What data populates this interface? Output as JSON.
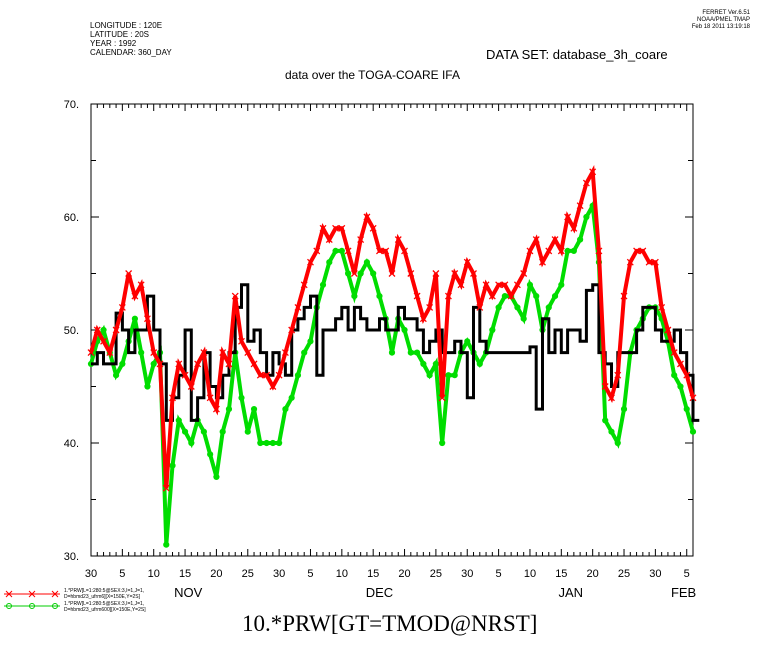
{
  "header": {
    "meta_lines": [
      "LONGITUDE : 120E",
      "LATITUDE : 20S",
      "YEAR : 1992",
      "CALENDAR: 360_DAY"
    ],
    "stamp_lines": [
      "FERRET  Ver.6.51",
      "NOAA/PMEL TMAP",
      "Feb 18 2011 13:19:18"
    ],
    "dataset": "DATA SET: database_3h_coare",
    "subtitle": "data over the TOGA-COARE IFA",
    "expression": "10.*PRW[GT=TMOD@NRST]"
  },
  "legend": {
    "items": [
      {
        "line1": "1.*PRW[L=1:280:5@SEX:3,I=1,J=1,",
        "line2": "D=hbmd23_ufrm6][X=150E,Y=2S]",
        "color": "#ff0000",
        "marker": "x"
      },
      {
        "line1": "1.*PRW[L=1:280:5@SEX:3,I=1,J=1,",
        "line2": "D=hbmd23_ufrm600][X=150E,Y=2S]",
        "color": "#00dd00",
        "marker": "o"
      }
    ]
  },
  "chart_data": {
    "type": "line",
    "ylim": [
      30,
      70
    ],
    "yticks": [
      30,
      40,
      50,
      60,
      70
    ],
    "ytick_labels": [
      "30.",
      "40.",
      "50.",
      "60.",
      "70."
    ],
    "x_unit": "day index from 30 Oct",
    "xlim": [
      0,
      96
    ],
    "xtick_labels": [
      {
        "x": 0,
        "label": "30"
      },
      {
        "x": 5,
        "label": "5"
      },
      {
        "x": 10,
        "label": "10"
      },
      {
        "x": 15,
        "label": "15"
      },
      {
        "x": 20,
        "label": "20"
      },
      {
        "x": 25,
        "label": "25"
      },
      {
        "x": 30,
        "label": "30"
      },
      {
        "x": 35,
        "label": "5"
      },
      {
        "x": 40,
        "label": "10"
      },
      {
        "x": 45,
        "label": "15"
      },
      {
        "x": 50,
        "label": "20"
      },
      {
        "x": 55,
        "label": "25"
      },
      {
        "x": 60,
        "label": "30"
      },
      {
        "x": 65,
        "label": "5"
      },
      {
        "x": 70,
        "label": "10"
      },
      {
        "x": 75,
        "label": "15"
      },
      {
        "x": 80,
        "label": "20"
      },
      {
        "x": 85,
        "label": "25"
      },
      {
        "x": 90,
        "label": "30"
      },
      {
        "x": 95,
        "label": "5"
      }
    ],
    "month_labels": [
      {
        "x": 15.5,
        "label": "NOV"
      },
      {
        "x": 46,
        "label": "DEC"
      },
      {
        "x": 76.5,
        "label": "JAN"
      },
      {
        "x": 94.5,
        "label": "FEB"
      }
    ],
    "series": [
      {
        "color": "#000000",
        "marker": "none",
        "x": [
          0,
          1,
          2,
          3,
          4,
          5,
          6,
          7,
          8,
          9,
          10,
          11,
          12,
          13,
          14,
          15,
          16,
          17,
          18,
          19,
          20,
          21,
          22,
          23,
          24,
          25,
          26,
          27,
          28,
          29,
          30,
          31,
          32,
          33,
          34,
          35,
          36,
          37,
          38,
          39,
          40,
          41,
          42,
          43,
          44,
          45,
          46,
          47,
          48,
          49,
          50,
          51,
          52,
          53,
          54,
          55,
          56,
          57,
          58,
          59,
          60,
          61,
          62,
          63,
          64,
          65,
          66,
          67,
          68,
          69,
          70,
          71,
          72,
          73,
          74,
          75,
          76,
          77,
          78,
          79,
          80,
          81,
          82,
          83,
          84,
          85,
          86,
          87,
          88,
          89,
          90,
          91,
          92,
          93,
          94,
          95,
          96
        ],
        "y": [
          47,
          48,
          47,
          47,
          51.5,
          50,
          48,
          50,
          50,
          53,
          50,
          47,
          42,
          44,
          46,
          50,
          42,
          44,
          48,
          45,
          44,
          46,
          48,
          52,
          54,
          49,
          50,
          48,
          46,
          48,
          47,
          46,
          50,
          51,
          52,
          53,
          46,
          50,
          50,
          51,
          52,
          50,
          52,
          51,
          50,
          50,
          51,
          50,
          50,
          52,
          51,
          51,
          50,
          48,
          49,
          50,
          48,
          48,
          49,
          48,
          44,
          52,
          49,
          48,
          48,
          48,
          48,
          48,
          48,
          48,
          48.5,
          43,
          51,
          48,
          50,
          48,
          50,
          50,
          49,
          53.5,
          54,
          48,
          47,
          45,
          48,
          48,
          48,
          50,
          52,
          52,
          50,
          49,
          49,
          50,
          48,
          46,
          42
        ]
      },
      {
        "color": "#ff0000",
        "marker": "x",
        "x": [
          0,
          1,
          2,
          3,
          4,
          5,
          6,
          7,
          8,
          9,
          10,
          11,
          12,
          13,
          14,
          15,
          16,
          17,
          18,
          19,
          20,
          21,
          22,
          23,
          24,
          25,
          26,
          27,
          28,
          29,
          30,
          31,
          32,
          33,
          34,
          35,
          36,
          37,
          38,
          39,
          40,
          41,
          42,
          43,
          44,
          45,
          46,
          47,
          48,
          49,
          50,
          51,
          52,
          53,
          54,
          55,
          56,
          57,
          58,
          59,
          60,
          61,
          62,
          63,
          64,
          65,
          66,
          67,
          68,
          69,
          70,
          71,
          72,
          73,
          74,
          75,
          76,
          77,
          78,
          79,
          80,
          81,
          82,
          83,
          84,
          85,
          86,
          87,
          88,
          89,
          90,
          91,
          92,
          93,
          94,
          95,
          96
        ],
        "y": [
          48,
          50,
          49,
          48,
          50,
          52,
          55,
          53,
          54,
          51,
          48,
          47,
          36,
          44,
          47,
          46,
          45,
          47,
          48,
          44,
          43,
          48,
          47,
          53,
          49,
          48,
          47,
          46,
          46,
          45,
          46,
          48,
          50,
          52,
          54,
          56,
          57,
          59,
          58,
          59,
          59,
          57,
          55,
          58,
          60,
          59,
          57,
          57,
          55,
          58,
          57,
          55,
          53,
          51,
          52,
          55,
          44,
          53,
          55,
          54,
          56,
          55,
          52,
          54,
          53,
          54,
          54,
          53,
          54,
          55,
          57,
          58,
          56,
          57,
          58,
          57,
          60,
          59,
          61,
          63,
          64,
          57,
          45,
          44,
          46,
          53,
          56,
          57,
          57,
          56,
          56,
          52,
          50,
          48,
          47,
          46,
          44
        ]
      },
      {
        "color": "#00dd00",
        "marker": "o",
        "x": [
          0,
          1,
          2,
          3,
          4,
          5,
          6,
          7,
          8,
          9,
          10,
          11,
          12,
          13,
          14,
          15,
          16,
          17,
          18,
          19,
          20,
          21,
          22,
          23,
          24,
          25,
          26,
          27,
          28,
          29,
          30,
          31,
          32,
          33,
          34,
          35,
          36,
          37,
          38,
          39,
          40,
          41,
          42,
          43,
          44,
          45,
          46,
          47,
          48,
          49,
          50,
          51,
          52,
          53,
          54,
          55,
          56,
          57,
          58,
          59,
          60,
          61,
          62,
          63,
          64,
          65,
          66,
          67,
          68,
          69,
          70,
          71,
          72,
          73,
          74,
          75,
          76,
          77,
          78,
          79,
          80,
          81,
          82,
          83,
          84,
          85,
          86,
          87,
          88,
          89,
          90,
          91,
          92,
          93,
          94,
          95,
          96
        ],
        "y": [
          47,
          49,
          50,
          48,
          46,
          47,
          49,
          51,
          48,
          45,
          47,
          48,
          31,
          38,
          42,
          41,
          40,
          42,
          41,
          39,
          37,
          41,
          43,
          48,
          44,
          41,
          43,
          40,
          40,
          40,
          40,
          43,
          44,
          46,
          48,
          49,
          52,
          54,
          56,
          57,
          57,
          55,
          53,
          55,
          56,
          55,
          53,
          51,
          48,
          51,
          50,
          48,
          48,
          47,
          46,
          47,
          40,
          46,
          46,
          48,
          49,
          48,
          47,
          48,
          50,
          52,
          53,
          53,
          52,
          51,
          54,
          53,
          50,
          52,
          53,
          54,
          57,
          57,
          58,
          60,
          61,
          56,
          42,
          41,
          40,
          43,
          48,
          50,
          51,
          52,
          52,
          51,
          49,
          46,
          45,
          43,
          41
        ]
      }
    ]
  }
}
